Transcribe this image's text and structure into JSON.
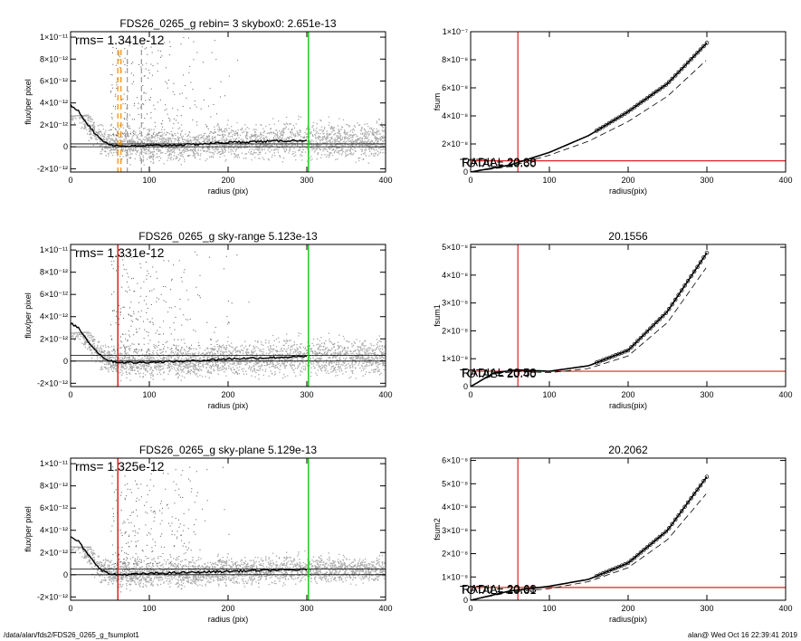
{
  "footer": {
    "path": "/data/alan/fds2/FDS26_0265_g_fsumplot1",
    "stamp": "alan@  Wed Oct 16 22:39:41 2019"
  },
  "colors": {
    "scatter_gray": "#a8a8a8",
    "scatter_dark": "#555555",
    "profile": "#000000",
    "red_line": "#e02020",
    "green_line": "#22cc22",
    "orange_dash": "#f08a00",
    "gray_dash": "#999999"
  },
  "chart_data": [
    {
      "type": "scatter",
      "panel": "left-1",
      "title": "FDS26_0265_g rebin= 3    skybox0:  2.651e-13",
      "annotation": "rms= 1.341e-12",
      "xlabel": "radius (pix)",
      "ylabel": "flux/per pixel",
      "xlim": [
        0,
        400
      ],
      "ylim": [
        -2.3e-12,
        1.05e-11
      ],
      "xticks": [
        0,
        100,
        200,
        300,
        400
      ],
      "xtick_labels": [
        "0",
        "100",
        "200",
        "300",
        "400"
      ],
      "yticks": [
        -2e-12,
        0,
        2e-12,
        4e-12,
        6e-12,
        8e-12,
        1e-11
      ],
      "ytick_labels": [
        "-2×10⁻¹²",
        "0",
        "2×10⁻¹²",
        "4×10⁻¹²",
        "6×10⁻¹²",
        "8×10⁻¹²",
        "1×10⁻¹¹"
      ],
      "hlines": [
        0,
        2.651e-13
      ],
      "vlines": [
        {
          "x": 302,
          "color": "green",
          "style": "solid"
        },
        {
          "x": 60,
          "color": "orange",
          "style": "dashed"
        },
        {
          "x": 64,
          "color": "orange",
          "style": "dashed"
        },
        {
          "x": 72,
          "color": "gray",
          "style": "dashed"
        },
        {
          "x": 90,
          "color": "gray",
          "style": "dashed"
        }
      ],
      "profile": {
        "x": [
          0,
          10,
          20,
          30,
          40,
          50,
          60,
          80,
          100,
          150,
          200,
          250,
          300
        ],
        "y": [
          3.8e-12,
          3.3e-12,
          2.2e-12,
          1.3e-12,
          6e-13,
          2e-13,
          1e-13,
          5e-14,
          1e-13,
          2e-13,
          4e-13,
          5e-13,
          6e-13
        ]
      },
      "cloud_spread_start": [
        -2e-12,
        2.8e-12
      ],
      "cloud_spread_end": [
        -2.2e-12,
        4.4e-12
      ],
      "cloud_x_range": [
        0,
        400
      ],
      "outlier_region": [
        50,
        200,
        1e-12,
        1e-11
      ]
    },
    {
      "type": "line",
      "panel": "right-1",
      "title": "",
      "xlabel": "radius(pix)",
      "ylabel": "fsum",
      "xlim": [
        0,
        400
      ],
      "ylim": [
        0,
        1e-07
      ],
      "xticks": [
        0,
        100,
        200,
        300,
        400
      ],
      "xtick_labels": [
        "0",
        "100",
        "200",
        "300",
        "400"
      ],
      "yticks": [
        0,
        2e-08,
        4e-08,
        6e-08,
        8e-08,
        1e-07
      ],
      "ytick_labels": [
        "0",
        "2×10⁻⁸",
        "4×10⁻⁸",
        "6×10⁻⁸",
        "8×10⁻⁸",
        "1×10⁻⁷"
      ],
      "vline_x": 60,
      "hline_y": 8e-09,
      "overlap_text": "RADIAL 20.38",
      "overlap_text2": "TOTAL= 20.60",
      "series": [
        {
          "x": [
            0,
            50,
            100,
            150,
            200,
            250,
            300
          ],
          "values": [
            0,
            5e-09,
            1.4e-08,
            2.6e-08,
            4.3e-08,
            6.3e-08,
            9.2e-08
          ]
        },
        {
          "x": [
            0,
            50,
            100,
            150,
            200,
            250,
            300
          ],
          "values": [
            0,
            4e-09,
            1.2e-08,
            2.2e-08,
            3.6e-08,
            5.4e-08,
            8e-08
          ]
        }
      ]
    },
    {
      "type": "scatter",
      "panel": "left-2",
      "title": "FDS26_0265_g sky-range  5.123e-13",
      "annotation": "rms= 1.331e-12",
      "xlabel": "radius (pix)",
      "ylabel": "flux/per pixel",
      "xlim": [
        0,
        400
      ],
      "ylim": [
        -2.3e-12,
        1.05e-11
      ],
      "xticks": [
        0,
        100,
        200,
        300,
        400
      ],
      "xtick_labels": [
        "0",
        "100",
        "200",
        "300",
        "400"
      ],
      "yticks": [
        -2e-12,
        0,
        2e-12,
        4e-12,
        6e-12,
        8e-12,
        1e-11
      ],
      "ytick_labels": [
        "-2×10⁻¹²",
        "0",
        "2×10⁻¹²",
        "4×10⁻¹²",
        "6×10⁻¹²",
        "8×10⁻¹²",
        "1×10⁻¹¹"
      ],
      "hlines": [
        0,
        5.123e-13
      ],
      "vlines": [
        {
          "x": 60,
          "color": "red",
          "style": "solid"
        },
        {
          "x": 302,
          "color": "green",
          "style": "solid"
        }
      ],
      "profile": {
        "x": [
          0,
          10,
          20,
          30,
          40,
          50,
          60,
          80,
          100,
          150,
          200,
          250,
          300
        ],
        "y": [
          3.4e-12,
          3e-12,
          2e-12,
          1.1e-12,
          4e-13,
          0.0,
          -1e-13,
          -1.5e-13,
          -1e-13,
          0.0,
          2e-13,
          3e-13,
          4e-13
        ]
      },
      "cloud_spread_start": [
        -2e-12,
        2.5e-12
      ],
      "cloud_spread_end": [
        -2.2e-12,
        4.3e-12
      ],
      "cloud_x_range": [
        0,
        400
      ],
      "outlier_region": [
        50,
        200,
        1e-12,
        1e-11
      ]
    },
    {
      "type": "line",
      "panel": "right-2",
      "title": "20.1556",
      "xlabel": "radius(pix)",
      "ylabel": "fsum1",
      "xlim": [
        0,
        400
      ],
      "ylim": [
        0,
        5.1e-08
      ],
      "xticks": [
        0,
        100,
        200,
        300,
        400
      ],
      "xtick_labels": [
        "0",
        "100",
        "200",
        "300",
        "400"
      ],
      "yticks": [
        0,
        1e-08,
        2e-08,
        3e-08,
        4e-08,
        5e-08
      ],
      "ytick_labels": [
        "0",
        "1×10⁻⁸",
        "2×10⁻⁸",
        "3×10⁻⁸",
        "4×10⁻⁸",
        "5×10⁻⁸"
      ],
      "vline_x": 60,
      "hline_y": 5.5e-09,
      "overlap_text": "RADIAL 20.58",
      "overlap_text2": "TOTAL= 20.40",
      "series": [
        {
          "x": [
            0,
            30,
            60,
            100,
            150,
            200,
            250,
            300
          ],
          "values": [
            0,
            5e-09,
            6e-09,
            5.5e-09,
            7.5e-09,
            1.3e-08,
            2.7e-08,
            4.8e-08
          ]
        },
        {
          "x": [
            0,
            30,
            60,
            100,
            150,
            200,
            250,
            300
          ],
          "values": [
            0,
            4.5e-09,
            5.5e-09,
            5e-09,
            6.5e-09,
            1.1e-08,
            2.3e-08,
            4.3e-08
          ]
        }
      ]
    },
    {
      "type": "scatter",
      "panel": "left-3",
      "title": "FDS26_0265_g sky-plane  5.129e-13",
      "annotation": "rms= 1.325e-12",
      "xlabel": "radius (pix)",
      "ylabel": "flux/per pixel",
      "xlim": [
        0,
        400
      ],
      "ylim": [
        -2.3e-12,
        1.05e-11
      ],
      "xticks": [
        0,
        100,
        200,
        300,
        400
      ],
      "xtick_labels": [
        "0",
        "100",
        "200",
        "300",
        "400"
      ],
      "yticks": [
        -2e-12,
        0,
        2e-12,
        4e-12,
        6e-12,
        8e-12,
        1e-11
      ],
      "ytick_labels": [
        "-2×10⁻¹²",
        "0",
        "2×10⁻¹²",
        "4×10⁻¹²",
        "6×10⁻¹²",
        "8×10⁻¹²",
        "1×10⁻¹¹"
      ],
      "hlines": [
        0,
        5.129e-13
      ],
      "vlines": [
        {
          "x": 60,
          "color": "red",
          "style": "solid"
        },
        {
          "x": 302,
          "color": "green",
          "style": "solid"
        }
      ],
      "profile": {
        "x": [
          0,
          10,
          20,
          30,
          40,
          50,
          60,
          80,
          100,
          150,
          200,
          250,
          300
        ],
        "y": [
          3.4e-12,
          3e-12,
          2e-12,
          1.1e-12,
          4e-13,
          5e-14,
          0.0,
          5e-14,
          1e-13,
          2e-13,
          3e-13,
          4e-13,
          4.5e-13
        ]
      },
      "cloud_spread_start": [
        -2e-12,
        2.5e-12
      ],
      "cloud_spread_end": [
        -2.1e-12,
        2.3e-12
      ],
      "cloud_x_range": [
        0,
        400
      ],
      "outlier_region": [
        50,
        200,
        1e-12,
        1e-11
      ]
    },
    {
      "type": "line",
      "panel": "right-3",
      "title": "20.2062",
      "xlabel": "radius(pix)",
      "ylabel": "fsum2",
      "xlim": [
        0,
        400
      ],
      "ylim": [
        0,
        6.1e-08
      ],
      "xticks": [
        0,
        100,
        200,
        300,
        400
      ],
      "xtick_labels": [
        "0",
        "100",
        "200",
        "300",
        "400"
      ],
      "yticks": [
        0,
        1e-08,
        2e-08,
        3e-08,
        4e-08,
        5e-08,
        6e-08
      ],
      "ytick_labels": [
        "0",
        "1×10⁻⁸",
        "2×10⁻⁸",
        "3×10⁻⁸",
        "4×10⁻⁸",
        "5×10⁻⁸",
        "6×10⁻⁸"
      ],
      "vline_x": 60,
      "hline_y": 5.5e-09,
      "overlap_text": "RADIAL 20.63",
      "overlap_text2": "TOTAL= 20.61",
      "series": [
        {
          "x": [
            0,
            50,
            100,
            150,
            200,
            250,
            300
          ],
          "values": [
            0,
            4e-09,
            6e-09,
            9e-09,
            1.6e-08,
            3e-08,
            5.3e-08
          ]
        },
        {
          "x": [
            0,
            50,
            100,
            150,
            200,
            250,
            300
          ],
          "values": [
            0,
            3.5e-09,
            5e-09,
            8e-09,
            1.4e-08,
            2.6e-08,
            4.6e-08
          ]
        }
      ]
    }
  ]
}
